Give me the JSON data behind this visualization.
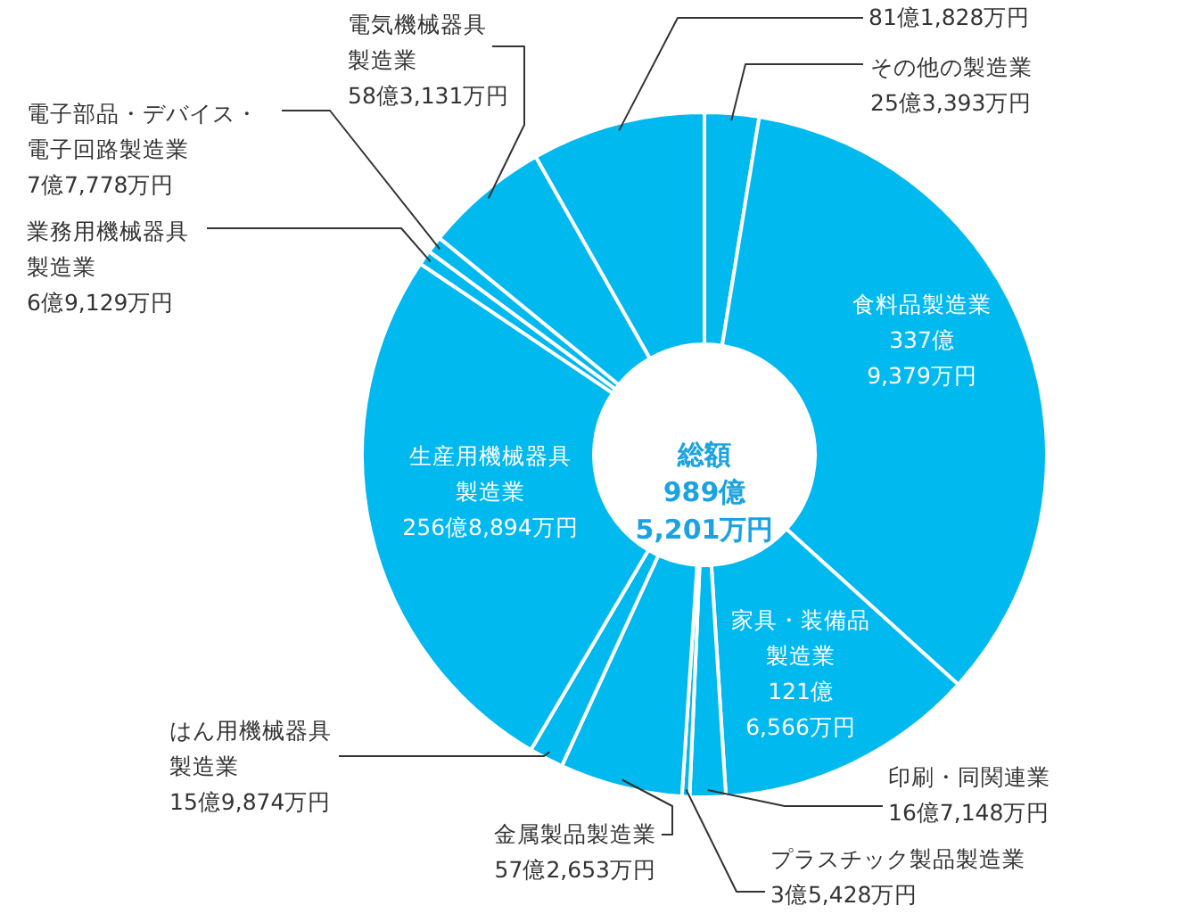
{
  "chart_data": {
    "type": "donut",
    "categories": [
      "その他の製造業",
      "食料品製造業",
      "家具・装備品製造業",
      "印刷・同関連業",
      "プラスチック製品製造業",
      "金属製品製造業",
      "はん用機械器具製造業",
      "生産用機械器具製造業",
      "業務用機械器具製造業",
      "電子部品・デバイス・電子回路製造業",
      "電気機械器具製造業",
      null
    ],
    "values": [
      2.56,
      34.15,
      12.29,
      1.69,
      0.36,
      5.79,
      1.62,
      25.96,
      0.7,
      0.79,
      5.89,
      8.2
    ],
    "colors": [
      "#00b9ef",
      "#00b9ef",
      "#00b9ef",
      "#00b9ef",
      "#00b9ef",
      "#00b9ef",
      "#00b9ef",
      "#00b9ef",
      "#00b9ef",
      "#00b9ef",
      "#00b9ef",
      "#00b9ef"
    ],
    "annotations": [
      "総額\n989億\n5,201万円",
      "25億3,393万円",
      "337億\n9,379万円",
      "121億\n6,566万円",
      "16億7,148万円",
      "3億5,428万円",
      "57億2,653万円",
      "15億9,874万円",
      "256億8,894万円",
      "6億9,129万円",
      "7億7,778万円",
      "58億3,131万円",
      "81億1,828万円"
    ]
  }
}
